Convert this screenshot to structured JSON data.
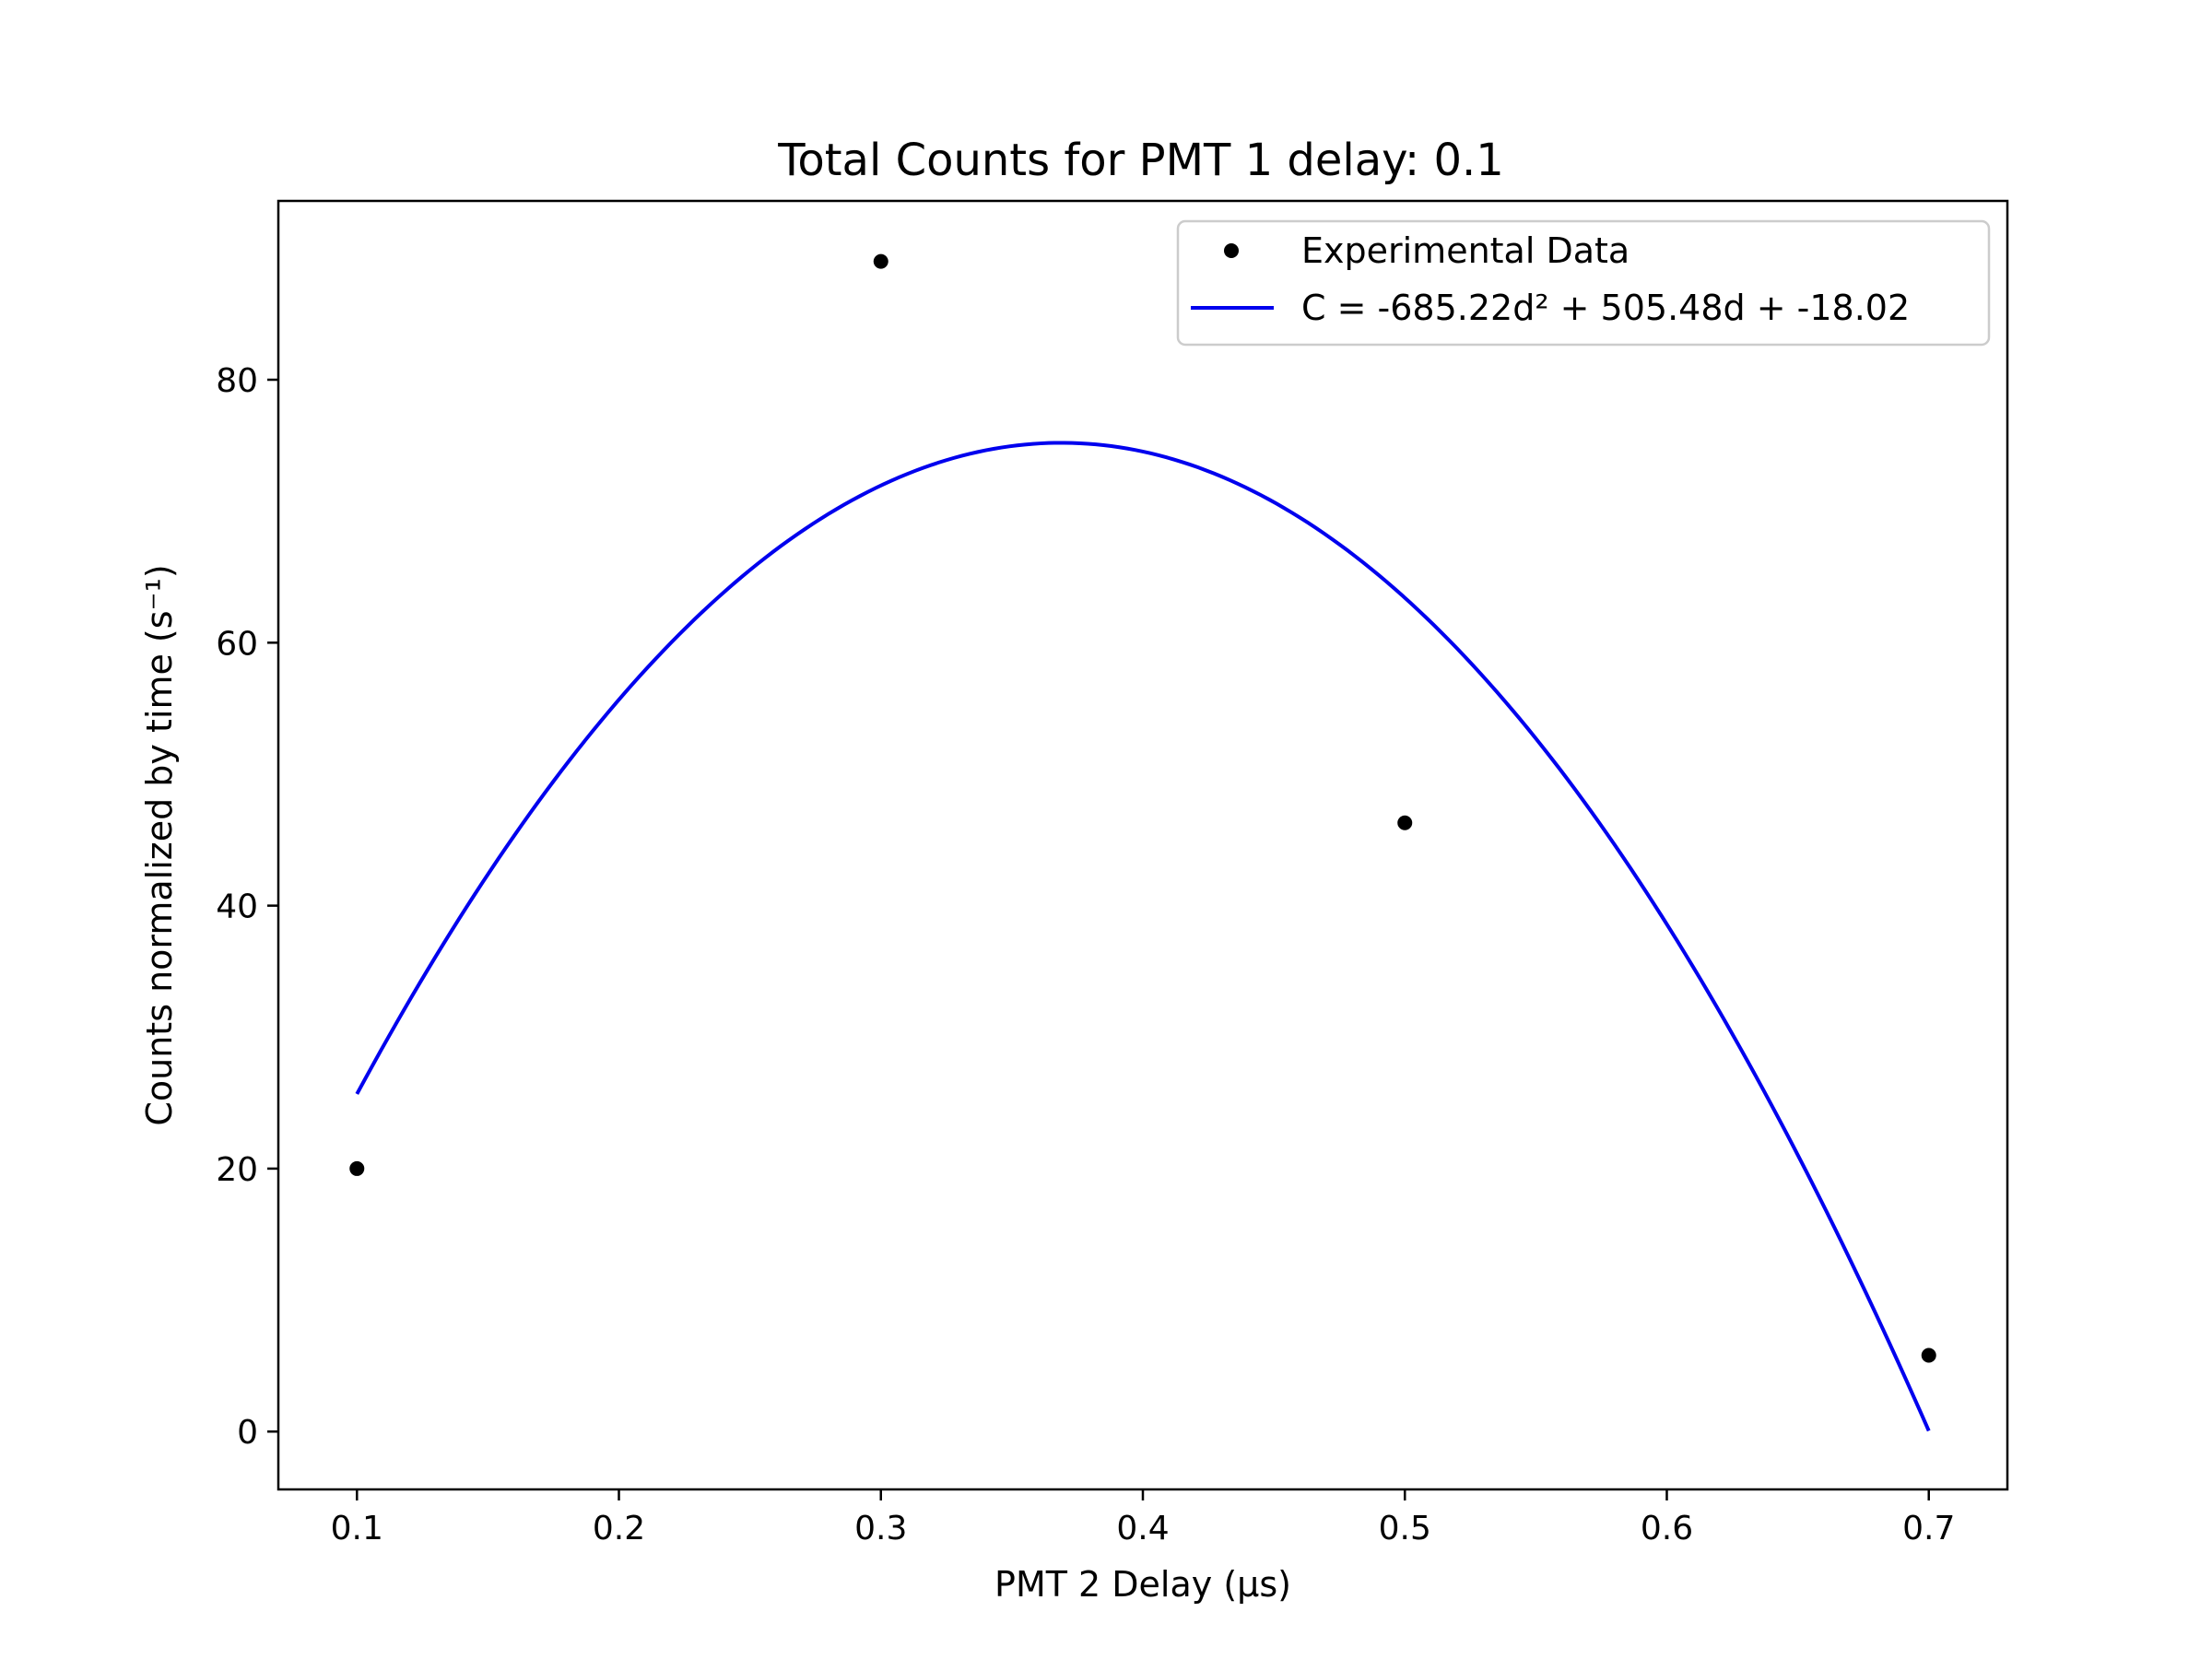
{
  "chart_data": {
    "type": "scatter",
    "title": "Total Counts for PMT 1 delay: 0.1",
    "xlabel": "PMT 2 Delay (µs)",
    "ylabel": "Counts normalized by time (s⁻¹)",
    "xlim": [
      0.07,
      0.73
    ],
    "ylim": [
      -4.4,
      93.6
    ],
    "xticks": [
      0.1,
      0.2,
      0.3,
      0.4,
      0.5,
      0.6,
      0.7
    ],
    "xtick_labels": [
      "0.1",
      "0.2",
      "0.3",
      "0.4",
      "0.5",
      "0.6",
      "0.7"
    ],
    "yticks": [
      0,
      20,
      40,
      60,
      80
    ],
    "ytick_labels": [
      "0",
      "20",
      "40",
      "60",
      "80"
    ],
    "grid": false,
    "legend_position": "top-right",
    "series": [
      {
        "name": "Experimental Data",
        "kind": "scatter",
        "color": "#000000",
        "x": [
          0.1,
          0.3,
          0.5,
          0.7
        ],
        "y": [
          20.0,
          89.0,
          46.3,
          5.8
        ]
      },
      {
        "name": "C = -685.22d² + 505.48d + -18.02",
        "kind": "line",
        "color": "#0000ee",
        "fit": {
          "a": -685.22,
          "b": 505.48,
          "c": -18.02
        },
        "x_range": [
          0.1,
          0.7
        ]
      }
    ]
  }
}
